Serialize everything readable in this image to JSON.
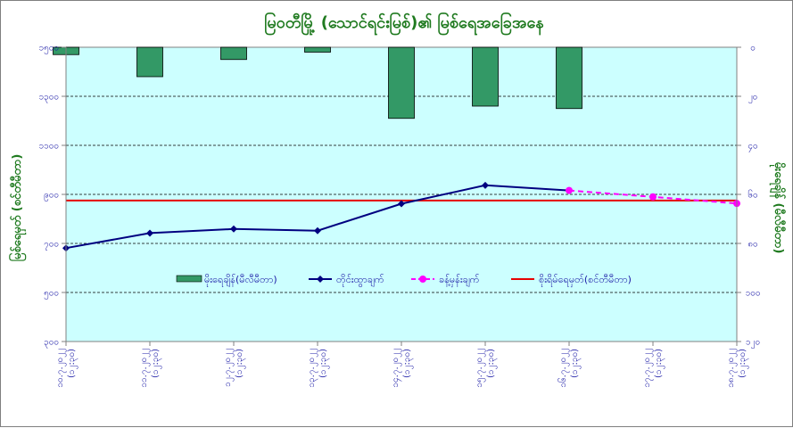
{
  "chart_data": {
    "type": "line",
    "title": "မြဝတီမြို့ (သောင်ရင်းမြစ်)၏ မြစ်ရေအခြေအနေ",
    "ylabel_left": "မြစ်ရေမှတ် (စင်တီမီတာ)",
    "ylabel_right": "မိုးရေချိန် (မီလီမီတာ)",
    "categories": [
      [
        "၁၀.၇.၂၀၂၂",
        "(၁၂:၃၀)"
      ],
      [
        "၁၁.၇.၂၀၂၂",
        "(၁၂:၃၀)"
      ],
      [
        "၁၂.၇.၂၀၂၂",
        "(၁၂:၃၀)"
      ],
      [
        "၁၃.၇.၂၀၂၂",
        "(၁၂:၃၀)"
      ],
      [
        "၁၄.၇.၂၀၂၂",
        "(၁၂:၃၀)"
      ],
      [
        "၁၅.၇.၂၀၂၂",
        "(၁၂:၃၀)"
      ],
      [
        "၁၆.၇.၂၀၂၂",
        "(၁၂:၃၀)"
      ],
      [
        "၁၇.၇.၂၀၂၂",
        "(၁၂:၃၀)"
      ],
      [
        "၁၈.၇.၂၀၂၂",
        "(၁၂:၃၀)"
      ]
    ],
    "ylim_left": [
      300,
      1500
    ],
    "yticks_left": [
      300,
      500,
      700,
      900,
      1100,
      1300,
      1500
    ],
    "yticks_left_labels": [
      "၃၀၀",
      "၅၀၀",
      "၇၀၀",
      "၉၀၀",
      "၁၁၀၀",
      "၁၃၀၀",
      "၁၅၀၀"
    ],
    "ylim_right": [
      0,
      120
    ],
    "yticks_right": [
      0,
      20,
      40,
      60,
      80,
      100,
      120
    ],
    "yticks_right_labels": [
      "၀",
      "၂၀",
      "၄၀",
      "၆၀",
      "၈၀",
      "၁၀၀",
      "၁၂၀"
    ],
    "series": [
      {
        "name": "မိုးရေချိန်(မီလီမီတာ)",
        "type": "bar",
        "axis": "right",
        "color": "#339966",
        "values": [
          3,
          12,
          5,
          2,
          29,
          24,
          25,
          null,
          null
        ]
      },
      {
        "name": "တိုင်းထွာချက်",
        "type": "line",
        "axis": "left",
        "color": "#000080",
        "marker": "diamond",
        "values": [
          681,
          742,
          759,
          752,
          862,
          937,
          916,
          null,
          null
        ]
      },
      {
        "name": "ခန့်မှန်းချက်",
        "type": "line",
        "axis": "left",
        "color": "#ff00ff",
        "marker": "circle",
        "dashed": true,
        "values": [
          null,
          null,
          null,
          null,
          null,
          null,
          916,
          890,
          863
        ]
      },
      {
        "name": "စိုးရိမ်ရေမှတ်(စင်တီမီတာ)",
        "type": "hline",
        "axis": "left",
        "color": "#e60000",
        "value": 875
      }
    ],
    "grid": true,
    "plot_background": "#ccffff",
    "legend_position": "center"
  }
}
